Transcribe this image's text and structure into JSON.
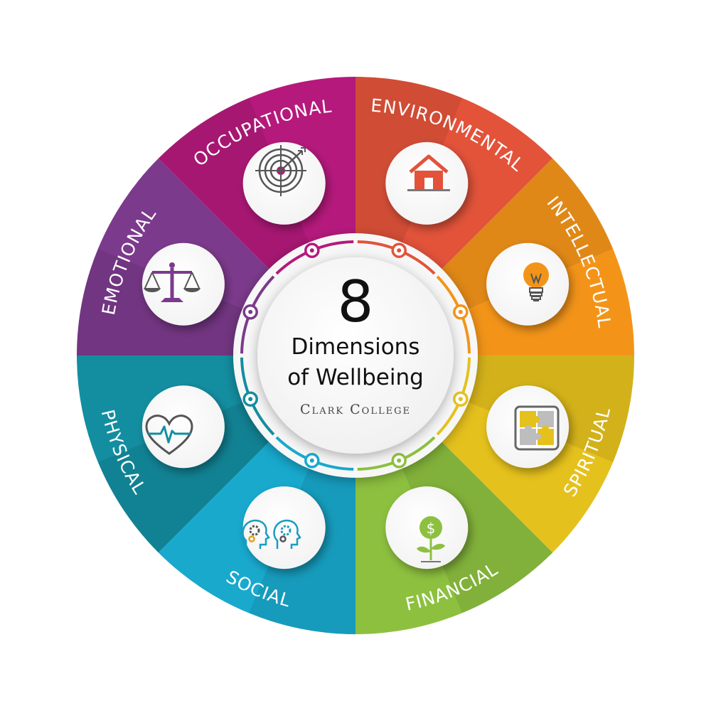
{
  "title": {
    "number": "8",
    "line1": "Dimensions",
    "line2": "of Wellbeing",
    "organization": "Clark College"
  },
  "dimensions": [
    {
      "label": "ENVIRONMENTAL",
      "color": "#e2533a",
      "icon": "house-icon"
    },
    {
      "label": "INTELLECTUAL",
      "color": "#f39419",
      "icon": "lightbulb-icon"
    },
    {
      "label": "SPIRITUAL",
      "color": "#e5c11d",
      "icon": "puzzle-icon"
    },
    {
      "label": "FINANCIAL",
      "color": "#8dc03f",
      "icon": "money-plant-icon"
    },
    {
      "label": "SOCIAL",
      "color": "#18a9cd",
      "icon": "heads-gears-icon"
    },
    {
      "label": "PHYSICAL",
      "color": "#138ea0",
      "icon": "heart-pulse-icon"
    },
    {
      "label": "EMOTIONAL",
      "color": "#7c3a8c",
      "icon": "balance-scale-icon"
    },
    {
      "label": "OCCUPATIONAL",
      "color": "#b5197c",
      "icon": "target-icon"
    }
  ]
}
